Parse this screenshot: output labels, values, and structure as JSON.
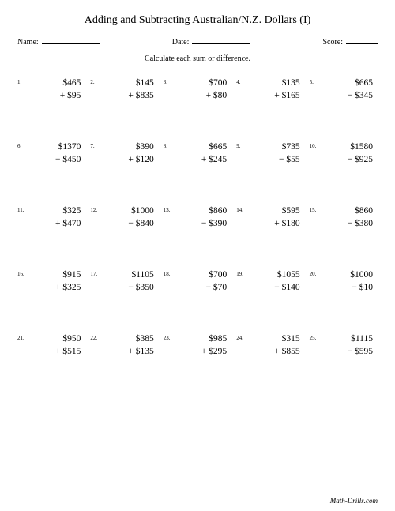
{
  "title": "Adding and Subtracting Australian/N.Z. Dollars (I)",
  "labels": {
    "name": "Name:",
    "date": "Date:",
    "score": "Score:"
  },
  "instructions": "Calculate each sum or difference.",
  "footer": "Math-Drills.com",
  "currency": "$",
  "problems": [
    {
      "n": "1.",
      "a": 465,
      "op": "+",
      "b": 95
    },
    {
      "n": "2.",
      "a": 145,
      "op": "+",
      "b": 835
    },
    {
      "n": "3.",
      "a": 700,
      "op": "+",
      "b": 80
    },
    {
      "n": "4.",
      "a": 135,
      "op": "+",
      "b": 165
    },
    {
      "n": "5.",
      "a": 665,
      "op": "−",
      "b": 345
    },
    {
      "n": "6.",
      "a": 1370,
      "op": "−",
      "b": 450
    },
    {
      "n": "7.",
      "a": 390,
      "op": "+",
      "b": 120
    },
    {
      "n": "8.",
      "a": 665,
      "op": "+",
      "b": 245
    },
    {
      "n": "9.",
      "a": 735,
      "op": "−",
      "b": 55
    },
    {
      "n": "10.",
      "a": 1580,
      "op": "−",
      "b": 925
    },
    {
      "n": "11.",
      "a": 325,
      "op": "+",
      "b": 470
    },
    {
      "n": "12.",
      "a": 1000,
      "op": "−",
      "b": 840
    },
    {
      "n": "13.",
      "a": 860,
      "op": "−",
      "b": 390
    },
    {
      "n": "14.",
      "a": 595,
      "op": "+",
      "b": 180
    },
    {
      "n": "15.",
      "a": 860,
      "op": "−",
      "b": 380
    },
    {
      "n": "16.",
      "a": 915,
      "op": "+",
      "b": 325
    },
    {
      "n": "17.",
      "a": 1105,
      "op": "−",
      "b": 350
    },
    {
      "n": "18.",
      "a": 700,
      "op": "−",
      "b": 70
    },
    {
      "n": "19.",
      "a": 1055,
      "op": "−",
      "b": 140
    },
    {
      "n": "20.",
      "a": 1000,
      "op": "−",
      "b": 10
    },
    {
      "n": "21.",
      "a": 950,
      "op": "+",
      "b": 515
    },
    {
      "n": "22.",
      "a": 385,
      "op": "+",
      "b": 135
    },
    {
      "n": "23.",
      "a": 985,
      "op": "+",
      "b": 295
    },
    {
      "n": "24.",
      "a": 315,
      "op": "+",
      "b": 855
    },
    {
      "n": "25.",
      "a": 1115,
      "op": "−",
      "b": 595
    }
  ],
  "styling": {
    "page_bg": "#ffffff",
    "text_color": "#000000",
    "title_fontsize": 14,
    "label_fontsize": 10,
    "instruction_fontsize": 10,
    "problem_fontsize": 11.5,
    "number_fontsize": 7,
    "footer_fontsize": 9,
    "grid_cols": 5,
    "grid_rows": 5,
    "line_color": "#000000"
  }
}
